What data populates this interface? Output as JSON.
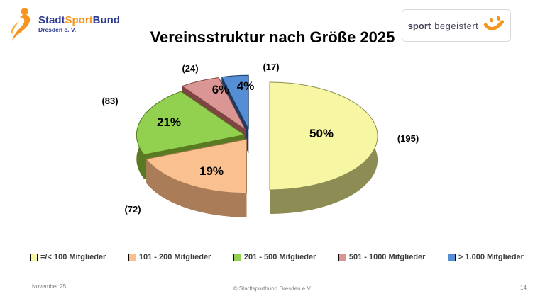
{
  "slide": {
    "title": "Vereinsstruktur nach Größe 2025"
  },
  "logo_left": {
    "name_part1": "Stadt",
    "name_part2": "Sport",
    "name_part3": "Bund",
    "subtitle": "Dresden e. V."
  },
  "logo_right": {
    "word1": "sport",
    "word2": "begeistert"
  },
  "chart_data": {
    "type": "pie",
    "style": "3d-exploded",
    "title": "Vereinsstruktur nach Größe 2025",
    "start_angle_deg": -90,
    "direction": "clockwise",
    "legend_position": "bottom",
    "slices": [
      {
        "label": "=/< 100 Mitglieder",
        "percent": 50,
        "count": 195,
        "color": "#F7F6A3",
        "side_color": "#8C8C54"
      },
      {
        "label": "101 - 200 Mitglieder",
        "percent": 19,
        "count": 72,
        "color": "#FAC090",
        "side_color": "#AA7C57"
      },
      {
        "label": "201 - 500 Mitglieder",
        "percent": 21,
        "count": 83,
        "color": "#92D050",
        "side_color": "#597A22"
      },
      {
        "label": "501 - 1000 Mitglieder",
        "percent": 6,
        "count": 24,
        "color": "#D99694",
        "side_color": "#7E4642"
      },
      {
        "label": "> 1.000 Mitglieder",
        "percent": 4,
        "count": 17,
        "color": "#568ED5",
        "side_color": "#1D3A63"
      }
    ]
  },
  "footer": {
    "date": "November 25",
    "copyright": "© Stadtsportbund Dresden e.V.",
    "page_number": "14"
  },
  "colors": {
    "brand_navy": "#2B3990",
    "brand_orange": "#F7941E",
    "logo_right_text": "#45435C",
    "footer_gray": "#808080"
  }
}
